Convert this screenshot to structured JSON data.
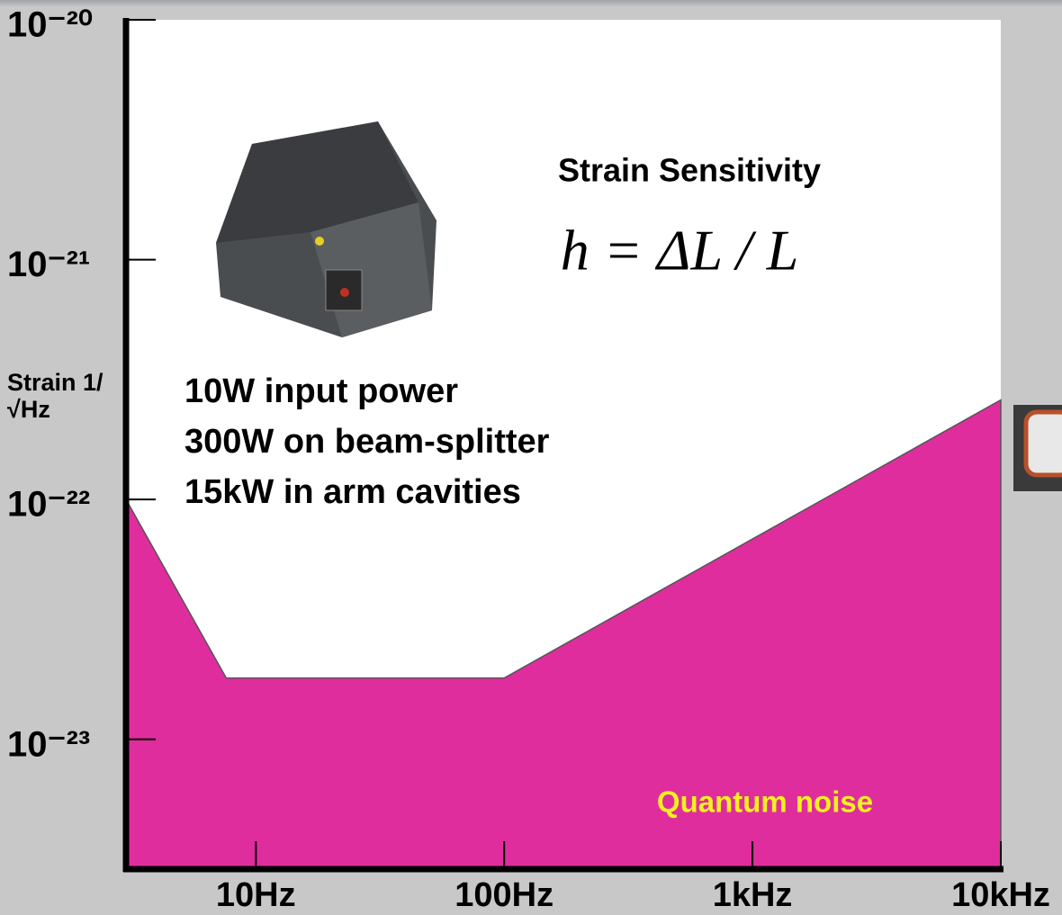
{
  "chart_data": {
    "type": "area",
    "ylabel": "Strain 1/√Hz",
    "annotations": [
      "Strain Sensitivity",
      "h = ΔL / L",
      "10W input power",
      "300W on beam-splitter",
      "15kW in arm cavities"
    ],
    "x": [
      3,
      7.6,
      100,
      10000
    ],
    "series": [
      {
        "name": "Quantum noise",
        "color": "#e02d9e",
        "values": [
          1e-22,
          1.8e-23,
          1.8e-23,
          2.6e-22
        ]
      }
    ],
    "xscale": "log",
    "yscale": "log",
    "xlim": [
      3,
      10000
    ],
    "ylim": [
      2.9e-24,
      1e-20
    ],
    "xticks": [
      {
        "value": 10,
        "label": "10Hz"
      },
      {
        "value": 100,
        "label": "100Hz"
      },
      {
        "value": 1000,
        "label": "1kHz"
      },
      {
        "value": 10000,
        "label": "10kHz"
      }
    ],
    "yticks": [
      {
        "value": 1e-20,
        "label": "10⁻²⁰"
      },
      {
        "value": 1e-21,
        "label": "10⁻²¹"
      },
      {
        "value": 1e-22,
        "label": "10⁻²²"
      },
      {
        "value": 1e-23,
        "label": "10⁻²³"
      }
    ]
  }
}
